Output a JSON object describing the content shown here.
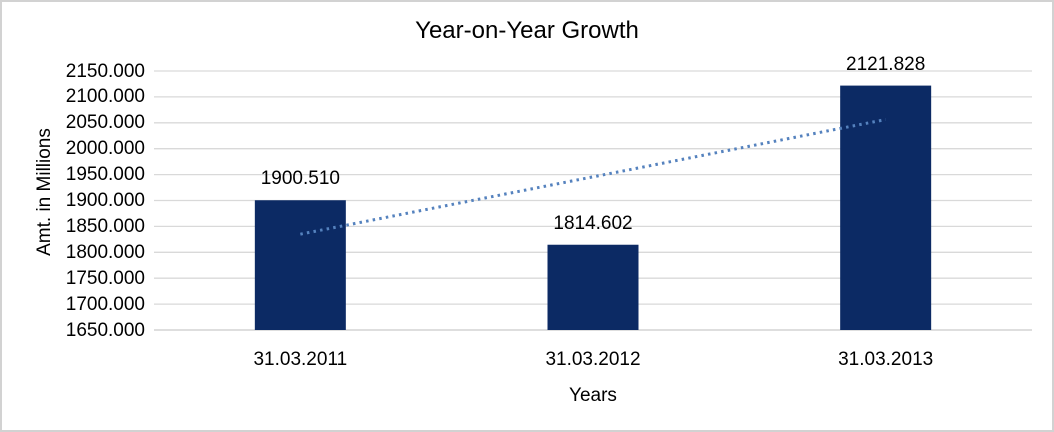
{
  "frame": {
    "background": "#ffffff",
    "border_color": "#d2d2d2"
  },
  "chart_data": {
    "type": "bar",
    "title": "Year-on-Year Growth",
    "xlabel": "Years",
    "ylabel": "Amt. in Millions",
    "categories": [
      "31.03.2011",
      "31.03.2012",
      "31.03.2013"
    ],
    "values": [
      1900.51,
      1814.602,
      2121.828
    ],
    "bar_value_labels": [
      "1900.510",
      "1814.602",
      "2121.828"
    ],
    "ylim": [
      1650,
      2150
    ],
    "ytick_step": 50,
    "ytick_labels": [
      "2150.000",
      "2100.000",
      "2050.000",
      "2000.000",
      "1950.000",
      "1900.000",
      "1850.000",
      "1800.000",
      "1750.000",
      "1700.000",
      "1650.000"
    ],
    "grid": true,
    "legend": "none",
    "bar_color": "#0c2a64",
    "gridline_color": "#d9d9d9",
    "baseline_color": "#c9c9c9",
    "text_color": "#000000",
    "trendline": {
      "type": "linear",
      "style": "dotted",
      "color": "#5582be"
    }
  }
}
